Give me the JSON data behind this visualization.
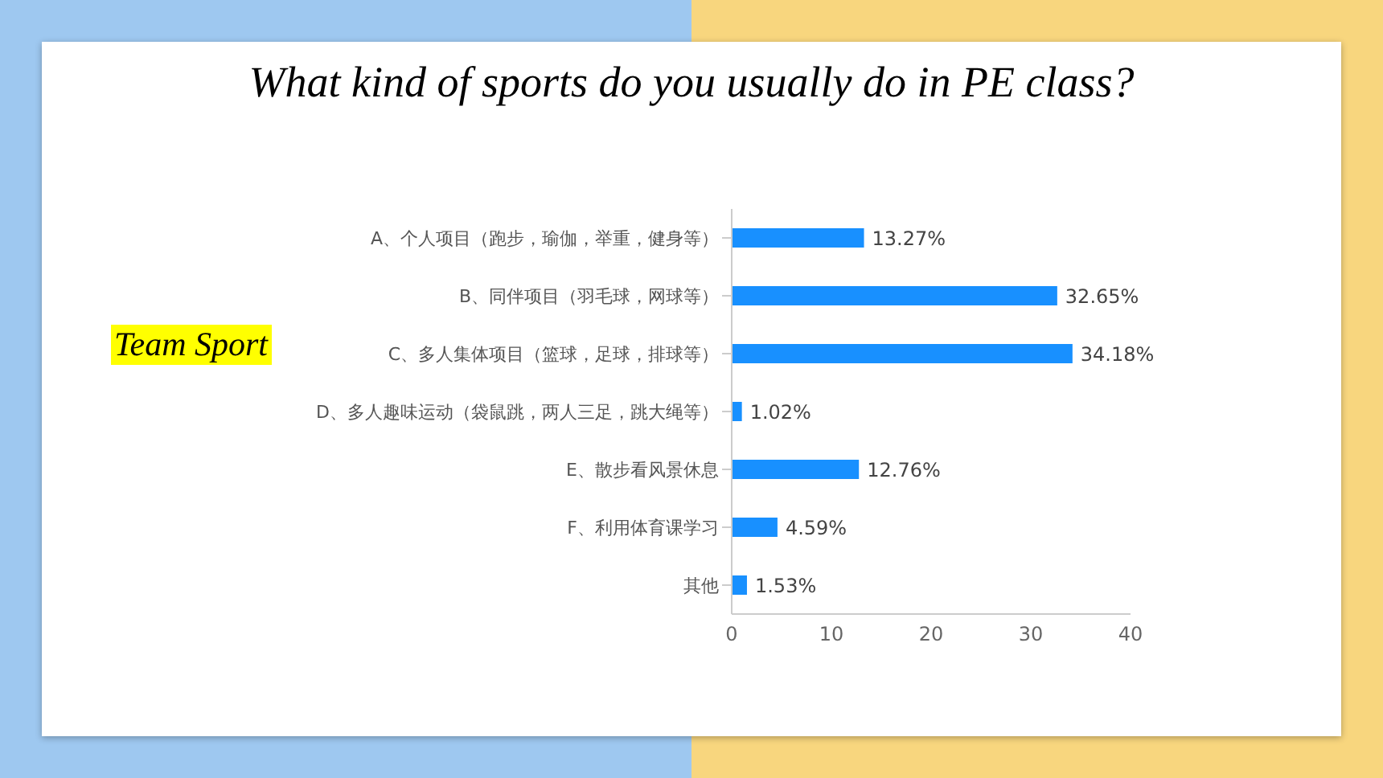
{
  "chart_data": {
    "type": "bar",
    "orientation": "horizontal",
    "title": "What kind of sports do you usually do in PE class?",
    "categories": [
      "A、个人项目（跑步，瑜伽，举重，健身等）",
      "B、同伴项目（羽毛球，网球等）",
      "C、多人集体项目（篮球，足球，排球等）",
      "D、多人趣味运动（袋鼠跳，两人三足，跳大绳等）",
      "E、散步看风景休息",
      "F、利用体育课学习",
      "其他"
    ],
    "values": [
      13.27,
      32.65,
      34.18,
      1.02,
      12.76,
      4.59,
      1.53
    ],
    "value_labels": [
      "13.27%",
      "32.65%",
      "34.18%",
      "1.02%",
      "12.76%",
      "4.59%",
      "1.53%"
    ],
    "color": "#1890ff",
    "xlim": [
      0,
      40
    ],
    "xticks": [
      0,
      10,
      20,
      30,
      40
    ],
    "grid": false,
    "annotations": [
      "Team Sport"
    ]
  }
}
